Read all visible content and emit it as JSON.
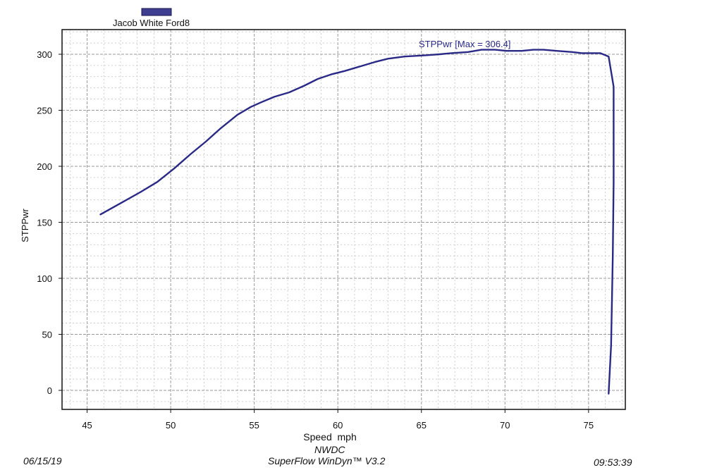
{
  "legend": {
    "label": "Jacob White Ford8",
    "swatch_color": "#3f3d8f"
  },
  "footer": {
    "date": "06/15/19",
    "org": "NWDC",
    "software": "SuperFlow WinDyn™ V3.2",
    "time": "09:53:39"
  },
  "colors": {
    "line": "#2a2a86",
    "grid_minor": "#c4c4c4",
    "grid_major": "#9a9a9a",
    "frame": "#111111"
  },
  "chart_data": {
    "type": "line",
    "xlabel": "Speed  mph",
    "ylabel": "STPPwr",
    "xlim": [
      43.5,
      77.2
    ],
    "ylim": [
      -17,
      322
    ],
    "x_ticks": [
      45,
      50,
      55,
      60,
      65,
      70,
      75
    ],
    "y_ticks": [
      0,
      50,
      100,
      150,
      200,
      250,
      300
    ],
    "grid": true,
    "legend_position": "top-left",
    "annotation": "STPPwr [Max = 306.4]",
    "series": [
      {
        "name": "Jacob White Ford8",
        "x": [
          45.8,
          47.0,
          48.2,
          49.2,
          50.2,
          51.2,
          52.1,
          53.0,
          54.0,
          54.8,
          55.4,
          56.2,
          57.1,
          58.0,
          58.8,
          59.6,
          60.4,
          61.3,
          62.2,
          63.0,
          64.0,
          65.2,
          66.1,
          66.8,
          67.8,
          68.6,
          69.4,
          70.1,
          71.0,
          71.7,
          72.3,
          73.1,
          74.0,
          74.6,
          75.1,
          75.7,
          76.2,
          76.5,
          76.5,
          76.45,
          76.35,
          76.2
        ],
        "y": [
          157,
          167,
          177,
          186,
          198,
          211,
          222,
          234,
          246,
          253,
          257,
          262,
          266,
          272,
          278,
          282,
          285,
          289,
          293,
          296,
          298,
          299,
          300,
          301,
          302,
          304,
          304,
          303,
          303,
          304,
          304,
          303,
          302,
          301,
          301,
          301,
          298,
          271,
          185,
          120,
          40,
          -3
        ]
      }
    ]
  }
}
